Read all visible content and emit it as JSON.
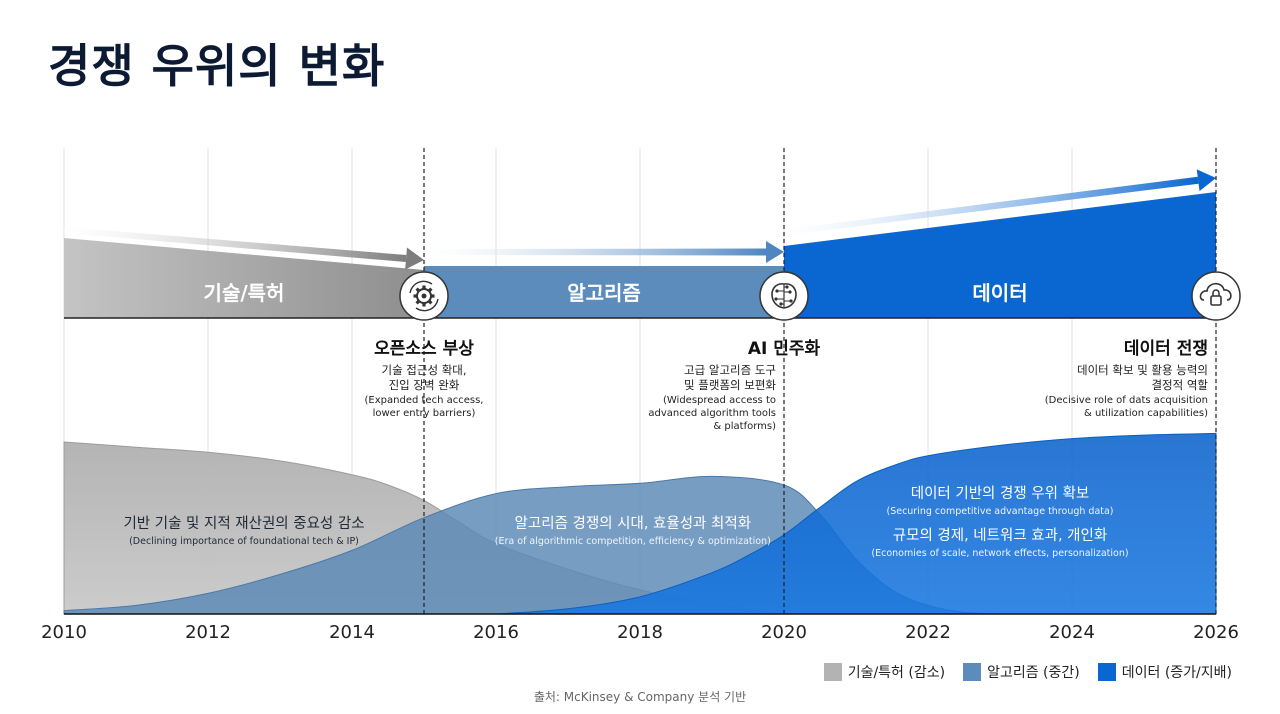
{
  "title": "경쟁 우위의 변화",
  "colors": {
    "tech": "#a3a3a3",
    "tech_dark": "#8a8a8a",
    "algo": "#5b8cbb",
    "algo_area": "#5a87b6",
    "data": "#0a66d0",
    "data_area": "#1470d8",
    "grid": "#e2e2e2",
    "axis": "#111111"
  },
  "chart_data": {
    "type": "area",
    "x_ticks": [
      "2010",
      "2012",
      "2014",
      "2016",
      "2018",
      "2020",
      "2022",
      "2024",
      "2026"
    ],
    "xlim": [
      2010,
      2026
    ],
    "series": [
      {
        "name": "기술/특허 (감소)",
        "x": [
          2010,
          2011,
          2012,
          2013,
          2014,
          2014.5,
          2015,
          2015.5,
          2016,
          2017,
          2018,
          2019,
          2020
        ],
        "values": [
          100,
          97,
          94,
          89,
          81,
          75,
          66,
          53,
          41,
          26,
          14,
          6,
          0
        ]
      },
      {
        "name": "알고리즘 (중간)",
        "x": [
          2010,
          2011,
          2012,
          2013,
          2014,
          2015,
          2016,
          2017,
          2018,
          2019,
          2020,
          2020.5,
          2021,
          2021.5,
          2022,
          2022.5,
          2023
        ],
        "values": [
          2,
          5,
          12,
          23,
          37,
          56,
          70,
          74,
          76,
          80,
          75,
          58,
          32,
          14,
          5,
          1,
          0
        ]
      },
      {
        "name": "데이터 (증가/지배)",
        "x": [
          2016,
          2017,
          2018,
          2019,
          2019.5,
          2020,
          2020.5,
          2021,
          2021.5,
          2022,
          2023,
          2024,
          2025,
          2026
        ],
        "values": [
          0,
          3,
          10,
          24,
          34,
          46,
          62,
          77,
          86,
          92,
          98,
          102,
          104,
          105
        ]
      }
    ],
    "phases": [
      {
        "label": "기술/특허",
        "start": 2010,
        "end": 2015
      },
      {
        "label": "알고리즘",
        "start": 2015,
        "end": 2020
      },
      {
        "label": "데이터",
        "start": 2020,
        "end": 2026
      }
    ],
    "milestones": [
      {
        "x": 2015,
        "icon": "open-source-gear-icon",
        "title": "오픈소스 부상",
        "desc": [
          "기술 접근성 확대,",
          "진입 장벽 완화"
        ],
        "en": [
          "(Expanded tech access,",
          "lower entry barriers)"
        ]
      },
      {
        "x": 2020,
        "icon": "ai-brain-circuit-icon",
        "title": "AI 민주화",
        "desc": [
          "고급 알고리즘 도구",
          "및 플랫폼의 보편화"
        ],
        "en": [
          "(Widespread access to",
          "advanced algorithm tools",
          "& platforms)"
        ]
      },
      {
        "x": 2026,
        "icon": "cloud-lock-icon",
        "title": "데이터 전쟁",
        "desc": [
          "데이터 확보 및 활용 능력의",
          "결정적 역할"
        ],
        "en": [
          "(Decisive role of dats acquisition",
          "& utilization capabilities)"
        ]
      }
    ],
    "annotations": [
      {
        "title": "기반 기술 및 지적 재산권의 중요성 감소",
        "en": "(Declining importance of foundational tech & IP)"
      },
      {
        "title": "알고리즘 경쟁의 시대, 효율성과 최적화",
        "en": "(Era of algorithmic competition, efficiency & optimization)"
      },
      {
        "title": "데이터 기반의 경쟁 우위 확보",
        "en": "(Securing competitive advantage through data)"
      },
      {
        "title": "규모의 경제, 네트워크 효과, 개인화",
        "en": "(Economies of scale, network effects, personalization)"
      }
    ]
  },
  "legend": [
    {
      "label": "기술/특허 (감소)",
      "color": "#b3b3b3"
    },
    {
      "label": "알고리즘 (중간)",
      "color": "#5b8cbb"
    },
    {
      "label": "데이터 (증가/지배)",
      "color": "#0a66d0"
    }
  ],
  "source": "출처: McKinsey & Company 분석 기반"
}
